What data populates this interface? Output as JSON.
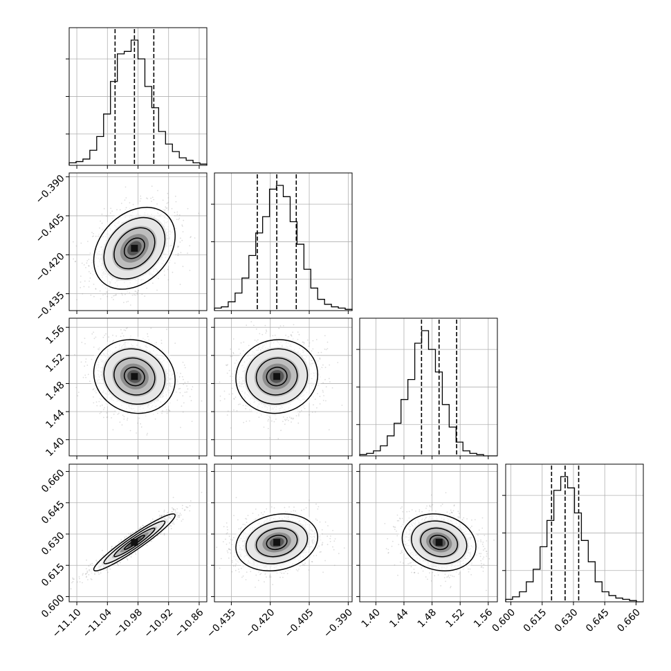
{
  "chart_data": {
    "type": "corner",
    "title": "",
    "parameters": [
      {
        "range": [
          -11.115,
          -10.845
        ],
        "median": -10.987,
        "q16": -11.025,
        "q84": -10.949,
        "ticks": [
          "-11.10",
          "-11.04",
          "-10.98",
          "-10.92",
          "-10.86"
        ],
        "tick_values": [
          -11.1,
          -11.04,
          -10.98,
          -10.92,
          -10.86
        ]
      },
      {
        "range": [
          -0.4415,
          -0.3885
        ],
        "median": -0.4175,
        "q16": -0.425,
        "q84": -0.41,
        "ticks": [
          "-0.435",
          "-0.420",
          "-0.405",
          "-0.390"
        ],
        "tick_values": [
          -0.435,
          -0.42,
          -0.405,
          -0.39
        ]
      },
      {
        "range": [
          1.377,
          1.573
        ],
        "median": 1.49,
        "q16": 1.465,
        "q84": 1.515,
        "ticks": [
          "1.40",
          "1.44",
          "1.48",
          "1.52",
          "1.56"
        ],
        "tick_values": [
          1.4,
          1.44,
          1.48,
          1.52,
          1.56
        ]
      },
      {
        "range": [
          0.5975,
          0.6635
        ],
        "median": 0.626,
        "q16": 0.6195,
        "q84": 0.6325,
        "ticks": [
          "0.600",
          "0.615",
          "0.630",
          "0.645",
          "0.660"
        ],
        "tick_values": [
          0.6,
          0.615,
          0.63,
          0.645,
          0.66
        ]
      }
    ],
    "histograms": [
      [
        0.02,
        0.03,
        0.05,
        0.12,
        0.23,
        0.41,
        0.67,
        0.89,
        0.91,
        1.0,
        0.85,
        0.63,
        0.46,
        0.27,
        0.17,
        0.11,
        0.06,
        0.04,
        0.02,
        0.01
      ],
      [
        0.02,
        0.03,
        0.07,
        0.14,
        0.26,
        0.44,
        0.62,
        0.75,
        0.97,
        1.0,
        0.91,
        0.71,
        0.53,
        0.33,
        0.18,
        0.09,
        0.05,
        0.03,
        0.02,
        0.01
      ],
      [
        0.01,
        0.02,
        0.04,
        0.08,
        0.16,
        0.26,
        0.45,
        0.61,
        0.9,
        1.0,
        0.85,
        0.67,
        0.41,
        0.23,
        0.11,
        0.04,
        0.02,
        0.01,
        0.0,
        0.0
      ],
      [
        0.02,
        0.04,
        0.08,
        0.16,
        0.26,
        0.44,
        0.65,
        0.89,
        1.0,
        0.91,
        0.71,
        0.49,
        0.32,
        0.16,
        0.08,
        0.05,
        0.03,
        0.02,
        0.01,
        0.0
      ]
    ],
    "correlations": {
      "1_0": 0.3,
      "2_0": -0.1,
      "2_1": 0.05,
      "3_0": 0.95,
      "3_1": 0.18,
      "3_2": -0.15
    },
    "quantiles": [
      0.16,
      0.5,
      0.84
    ],
    "contour_levels": [
      0.5,
      1.0,
      1.5,
      2.0
    ],
    "grid": true
  }
}
